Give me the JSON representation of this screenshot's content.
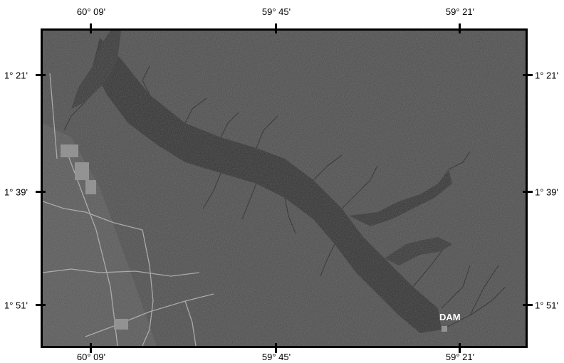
{
  "map": {
    "longitudes": [
      "60° 09'",
      "59° 45'",
      "59° 21'"
    ],
    "latitudes": [
      "1° 21'",
      "1° 39'",
      "1° 51'"
    ],
    "feature_label": "DAM",
    "colors": {
      "land": "#4a4a4a",
      "water": "#2c2c2c",
      "roads": "#bdbdbd",
      "frame": "#000000"
    }
  }
}
